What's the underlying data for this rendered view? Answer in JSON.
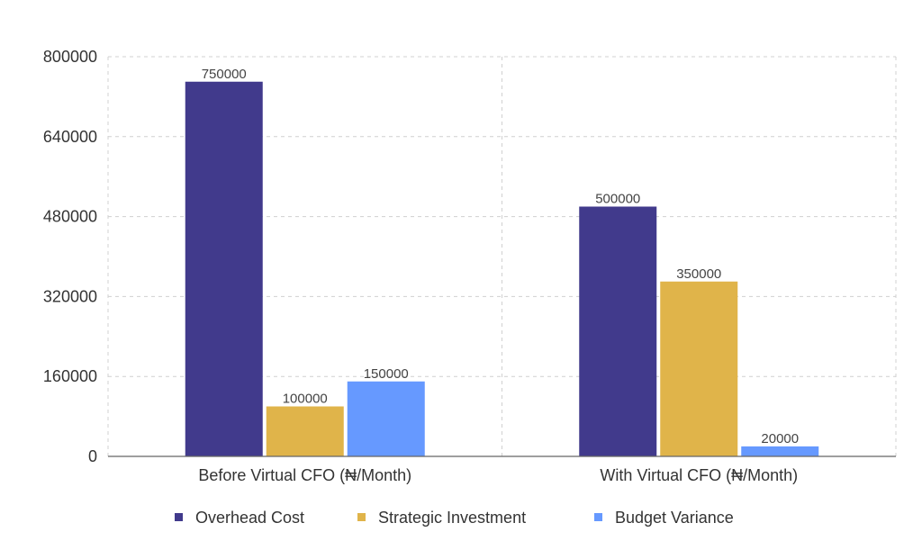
{
  "chart_data": {
    "type": "bar",
    "categories": [
      "Before Virtual CFO (₦/Month)",
      "With Virtual CFO (₦/Month)"
    ],
    "series": [
      {
        "name": "Overhead Cost",
        "values": [
          750000,
          500000
        ],
        "color": "#413a8c"
      },
      {
        "name": "Strategic Investment",
        "values": [
          100000,
          350000
        ],
        "color": "#e0b44a"
      },
      {
        "name": "Budget Variance",
        "values": [
          150000,
          20000
        ],
        "color": "#6699ff"
      }
    ],
    "yticks": [
      0,
      160000,
      320000,
      480000,
      640000,
      800000
    ],
    "ylim": [
      0,
      800000
    ],
    "grid": true,
    "legend": "bottom",
    "title": "",
    "xlabel": "",
    "ylabel": ""
  }
}
